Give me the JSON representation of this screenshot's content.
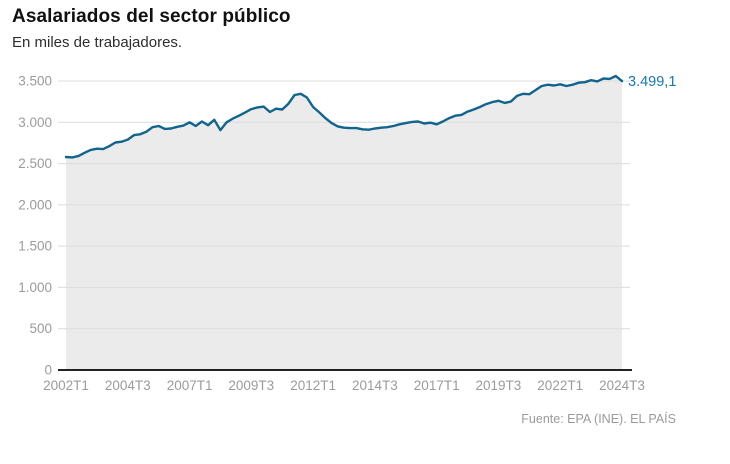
{
  "header": {
    "title": "Asalariados del sector público",
    "subtitle": "En miles de trabajadores."
  },
  "footer": {
    "source": "Fuente: EPA (INE). EL PAÍS"
  },
  "chart_data": {
    "type": "area",
    "title": "Asalariados del sector público",
    "subtitle": "En miles de trabajadores.",
    "frequency": "quarterly",
    "x_start": "2002T1",
    "x_end": "2024T3",
    "x_tick_labels": [
      "2002T1",
      "2004T3",
      "2007T1",
      "2009T3",
      "2012T1",
      "2014T3",
      "2017T1",
      "2019T3",
      "2022T1",
      "2024T3"
    ],
    "x_tick_every": 10,
    "y_tick_labels": [
      "0",
      "500",
      "1.000",
      "1.500",
      "2.000",
      "2.500",
      "3.000",
      "3.500"
    ],
    "y_tick_values": [
      0,
      500,
      1000,
      1500,
      2000,
      2500,
      3000,
      3500
    ],
    "ylim": [
      0,
      3500
    ],
    "grid": true,
    "legend": "none",
    "end_label": "3.499,1",
    "end_value": 3499.1,
    "series": [
      {
        "name": "Asalariados del sector público (miles)",
        "values": [
          2580,
          2575,
          2590,
          2630,
          2665,
          2680,
          2675,
          2710,
          2755,
          2765,
          2790,
          2845,
          2855,
          2885,
          2940,
          2955,
          2920,
          2925,
          2945,
          2960,
          3000,
          2955,
          3010,
          2965,
          3030,
          2905,
          3000,
          3045,
          3080,
          3120,
          3160,
          3180,
          3190,
          3125,
          3165,
          3155,
          3225,
          3330,
          3345,
          3300,
          3185,
          3120,
          3050,
          2990,
          2950,
          2935,
          2930,
          2930,
          2915,
          2910,
          2925,
          2935,
          2940,
          2955,
          2975,
          2990,
          3005,
          3010,
          2985,
          2995,
          2975,
          3010,
          3050,
          3080,
          3090,
          3130,
          3155,
          3185,
          3220,
          3245,
          3260,
          3235,
          3250,
          3320,
          3345,
          3340,
          3390,
          3440,
          3455,
          3445,
          3460,
          3440,
          3455,
          3480,
          3485,
          3510,
          3495,
          3530,
          3525,
          3560,
          3499.1
        ]
      }
    ],
    "colors": {
      "line": "#11648e",
      "area": "#ebebeb",
      "grid": "#dcdcdc",
      "axis_text": "#9b9b9b",
      "baseline": "#222222",
      "end_label": "#1777b4"
    }
  }
}
